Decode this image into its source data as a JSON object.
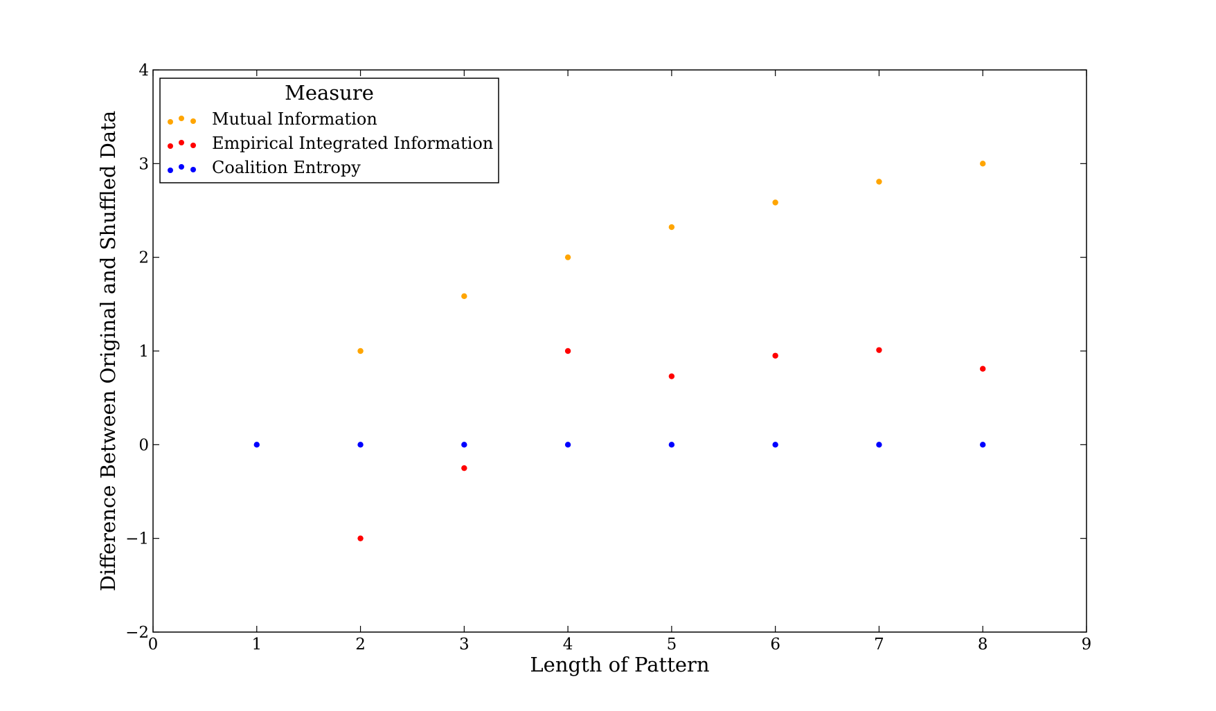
{
  "chart_data": {
    "type": "scatter",
    "title": "",
    "xlabel": "Length of Pattern",
    "ylabel": "Difference Between Original and Shuffled Data",
    "xlim": [
      0,
      9
    ],
    "ylim": [
      -2,
      4
    ],
    "xticks": [
      0,
      1,
      2,
      3,
      4,
      5,
      6,
      7,
      8,
      9
    ],
    "yticks": [
      -2,
      -1,
      0,
      1,
      2,
      3,
      4
    ],
    "grid": false,
    "legend": {
      "title": "Measure",
      "placement": "upper-left"
    },
    "series": [
      {
        "name": "Mutual Information",
        "color": "#ffa500",
        "points": [
          [
            2,
            1.0
          ],
          [
            3,
            1.585
          ],
          [
            4,
            2.0
          ],
          [
            5,
            2.322
          ],
          [
            6,
            2.585
          ],
          [
            7,
            2.807
          ],
          [
            8,
            3.0
          ]
        ]
      },
      {
        "name": "Empirical Integrated Information",
        "color": "#ff0000",
        "points": [
          [
            2,
            -1.0
          ],
          [
            3,
            -0.25
          ],
          [
            4,
            1.0
          ],
          [
            5,
            0.73
          ],
          [
            6,
            0.95
          ],
          [
            7,
            1.01
          ],
          [
            8,
            0.81
          ]
        ]
      },
      {
        "name": "Coalition Entropy",
        "color": "#0000ff",
        "points": [
          [
            1,
            0.0
          ],
          [
            2,
            0.0
          ],
          [
            3,
            0.0
          ],
          [
            4,
            0.0
          ],
          [
            5,
            0.0
          ],
          [
            6,
            0.0
          ],
          [
            7,
            0.0
          ],
          [
            8,
            0.0
          ]
        ]
      }
    ]
  }
}
